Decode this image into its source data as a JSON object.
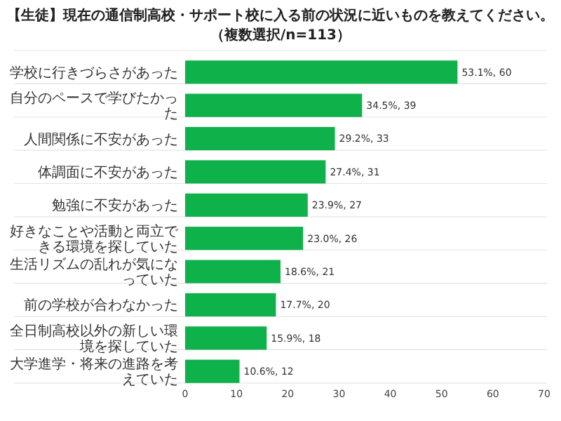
{
  "chart_data": {
    "type": "bar",
    "orientation": "horizontal",
    "title": "【生徒】現在の通信制高校・サポート校に入る前の状況に近いものを教えてください。",
    "subtitle": "（複数選択/n=113）",
    "categories": [
      "学校に行きづらさがあった",
      "自分のペースで学びたかった",
      "人間関係に不安があった",
      "体調面に不安があった",
      "勉強に不安があった",
      "好きなことや活動と両立できる環境を探していた",
      "生活リズムの乱れが気になっていた",
      "前の学校が合わなかった",
      "全日制高校以外の新しい環境を探していた",
      "大学進学・将来の進路を考えていた"
    ],
    "values": [
      53.1,
      34.5,
      29.2,
      27.4,
      23.9,
      23.0,
      18.6,
      17.7,
      15.9,
      10.6
    ],
    "value_labels": [
      "53.1%, 60",
      "34.5%, 39",
      "29.2%, 33",
      "27.4%, 31",
      "23.9%, 27",
      "23.0%, 26",
      "18.6%, 21",
      "17.7%, 20",
      "15.9%, 18",
      "10.6%, 12"
    ],
    "color": "#0fb14a",
    "xlim": [
      0,
      70
    ],
    "xticks": [
      0,
      10,
      20,
      30,
      40,
      50,
      60,
      70
    ],
    "grid": "y"
  }
}
